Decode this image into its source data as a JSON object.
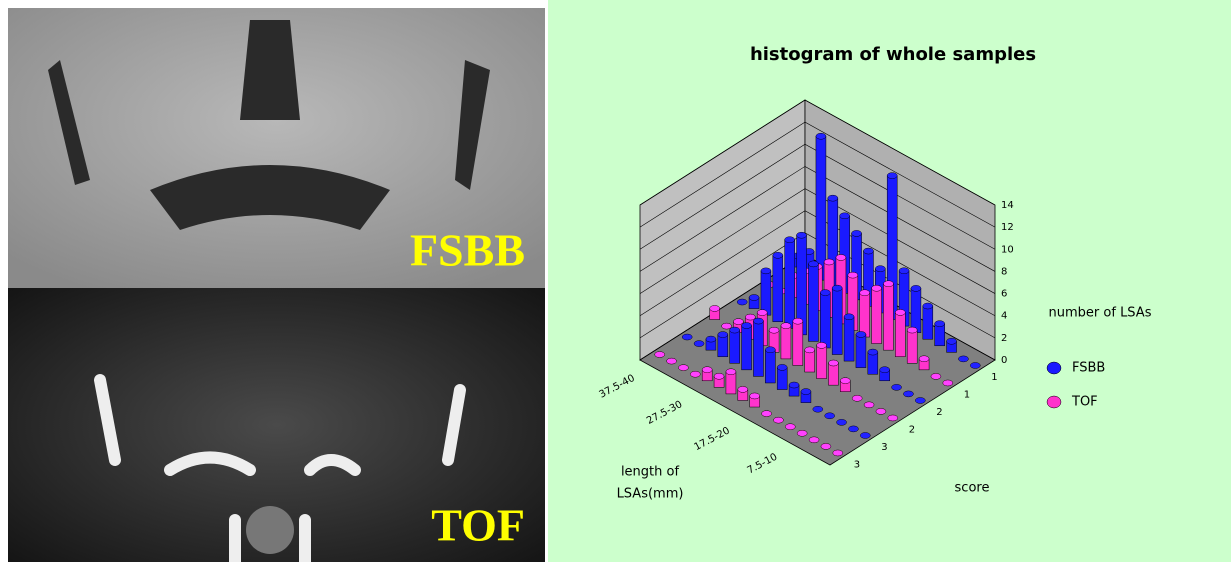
{
  "images": [
    {
      "label": "FSBB"
    },
    {
      "label": "TOF"
    }
  ],
  "chart_data": {
    "type": "bar3d",
    "title": "histogram of whole samples",
    "xlabel": [
      "length of",
      "LSAs(mm)"
    ],
    "zlabel": "score",
    "ylabel": "number of LSAs",
    "categories": [
      "37.5-40",
      null,
      null,
      null,
      "27.5-30",
      null,
      null,
      null,
      "17.5-20",
      null,
      null,
      null,
      "7.5-10",
      null,
      null,
      null
    ],
    "zcategories": [
      "1",
      "1",
      "2",
      "2",
      "3",
      "3"
    ],
    "series": [
      {
        "name": "FSBB",
        "color": "#1a1aff",
        "rows": [
          0,
          2,
          4
        ],
        "values": [
          [
            1,
            2,
            13,
            8,
            7,
            6,
            5,
            4,
            13,
            5,
            4,
            3,
            2,
            1,
            0,
            0
          ],
          [
            0,
            1,
            4,
            6,
            8,
            9,
            7,
            5,
            6,
            4,
            3,
            2,
            1,
            0,
            0,
            0
          ],
          [
            0,
            0,
            1,
            2,
            3,
            4,
            5,
            3,
            2,
            1,
            1,
            0,
            0,
            0,
            0,
            0
          ]
        ]
      },
      {
        "name": "TOF",
        "color": "#ff33cc",
        "rows": [
          1,
          3,
          5
        ],
        "values": [
          [
            0,
            0,
            2,
            3,
            4,
            5,
            6,
            5,
            4,
            5,
            6,
            4,
            3,
            1,
            0,
            0
          ],
          [
            1,
            0,
            1,
            2,
            3,
            2,
            3,
            4,
            2,
            3,
            2,
            1,
            0,
            0,
            0,
            0
          ],
          [
            0,
            0,
            0,
            0,
            1,
            1,
            2,
            1,
            1,
            0,
            0,
            0,
            0,
            0,
            0,
            0
          ]
        ]
      }
    ],
    "ylim": [
      0,
      14
    ],
    "yticks": [
      0,
      2,
      4,
      6,
      8,
      10,
      12,
      14
    ],
    "grid": true
  }
}
